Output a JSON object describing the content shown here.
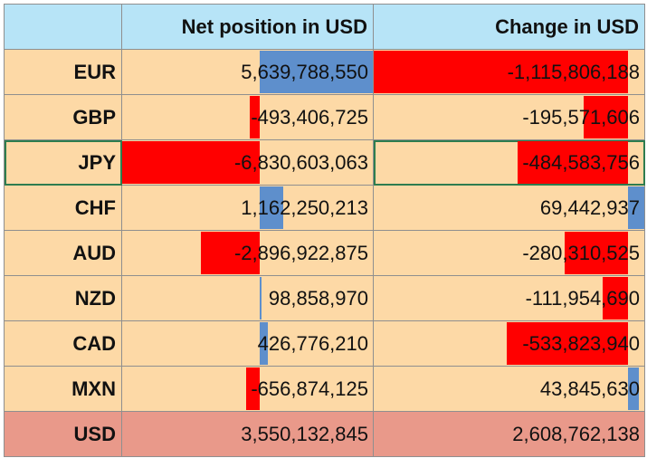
{
  "headers": {
    "currency": "",
    "net_position": "Net position in USD",
    "change": "Change in USD"
  },
  "rows": [
    {
      "currency": "EUR",
      "net_position": "5,639,788,550",
      "net_value": 5639788550,
      "change": "-1,115,806,188",
      "change_value": -1115806188
    },
    {
      "currency": "GBP",
      "net_position": "-493,406,725",
      "net_value": -493406725,
      "change": "-195,571,606",
      "change_value": -195571606
    },
    {
      "currency": "JPY",
      "net_position": "-6,830,603,063",
      "net_value": -6830603063,
      "change": "-484,583,756",
      "change_value": -484583756
    },
    {
      "currency": "CHF",
      "net_position": "1,162,250,213",
      "net_value": 1162250213,
      "change": "69,442,937",
      "change_value": 69442937
    },
    {
      "currency": "AUD",
      "net_position": "-2,896,922,875",
      "net_value": -2896922875,
      "change": "-280,310,525",
      "change_value": -280310525
    },
    {
      "currency": "NZD",
      "net_position": "98,858,970",
      "net_value": 98858970,
      "change": "-111,954,690",
      "change_value": -111954690
    },
    {
      "currency": "CAD",
      "net_position": "426,776,210",
      "net_value": 426776210,
      "change": "-533,823,940",
      "change_value": -533823940
    },
    {
      "currency": "MXN",
      "net_position": "-656,874,125",
      "net_value": -656874125,
      "change": "43,845,630",
      "change_value": 43845630
    }
  ],
  "total": {
    "currency": "USD",
    "net_position": "3,550,132,845",
    "change": "2,608,762,138"
  },
  "colors": {
    "header_bg": "#b7e4f7",
    "row_bg": "#fdd9a6",
    "total_bg": "#e9998a",
    "negative_bar": "#ff0000",
    "positive_bar": "#5e8fcc",
    "selection_border": "#2e7d4f"
  },
  "data_bars": {
    "net_position": {
      "min": -6830603063,
      "max": 5639788550
    },
    "change": {
      "min": -1115806188,
      "max": 69442937
    }
  }
}
